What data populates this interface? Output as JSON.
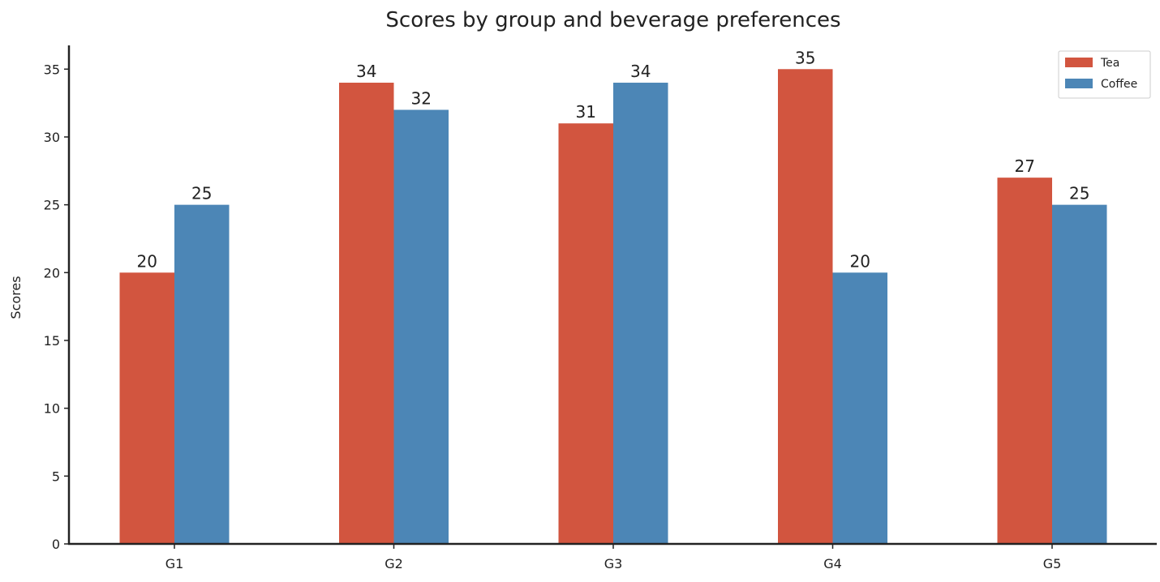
{
  "chart_data": {
    "type": "bar",
    "title": "Scores by group and beverage preferences",
    "xlabel": "",
    "ylabel": "Scores",
    "categories": [
      "G1",
      "G2",
      "G3",
      "G4",
      "G5"
    ],
    "series": [
      {
        "name": "Tea",
        "color": "#d2553f",
        "values": [
          20,
          34,
          31,
          35,
          27
        ]
      },
      {
        "name": "Coffee",
        "color": "#4c86b6",
        "values": [
          25,
          32,
          34,
          20,
          25
        ]
      }
    ],
    "ylim": [
      0,
      36.75
    ],
    "yticks": [
      0,
      5,
      10,
      15,
      20,
      25,
      30,
      35
    ],
    "grid": false,
    "legend_position": "top-right",
    "spines": [
      "left",
      "bottom"
    ]
  }
}
